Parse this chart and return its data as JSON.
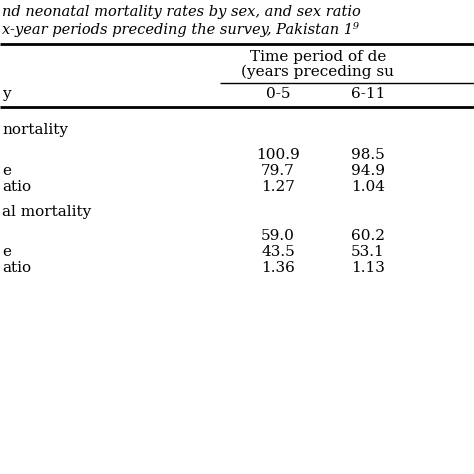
{
  "title_line1": "nd neonatal mortality rates by sex, and sex ratio",
  "title_line2": "x-year periods preceding the survey, Pakistan 1⁹",
  "col_header_main": "Time period of de",
  "col_header_sub": "(years preceding su",
  "col_header_row": "y",
  "col1_label": "0-5",
  "col2_label": "6-11",
  "section1_header": "nortality",
  "section1_rows": [
    {
      "label": "",
      "col1": "100.9",
      "col2": "98.5"
    },
    {
      "label": "e",
      "col1": "79.7",
      "col2": "94.9"
    },
    {
      "label": "atio",
      "col1": "1.27",
      "col2": "1.04"
    }
  ],
  "section2_header": "al mortality",
  "section2_rows": [
    {
      "label": "",
      "col1": "59.0",
      "col2": "60.2"
    },
    {
      "label": "e",
      "col1": "43.5",
      "col2": "53.1"
    },
    {
      "label": "atio",
      "col1": "1.36",
      "col2": "1.13"
    }
  ],
  "bg_color": "#ffffff",
  "text_color": "#000000",
  "title_fontsize": 10.5,
  "body_fontsize": 11
}
